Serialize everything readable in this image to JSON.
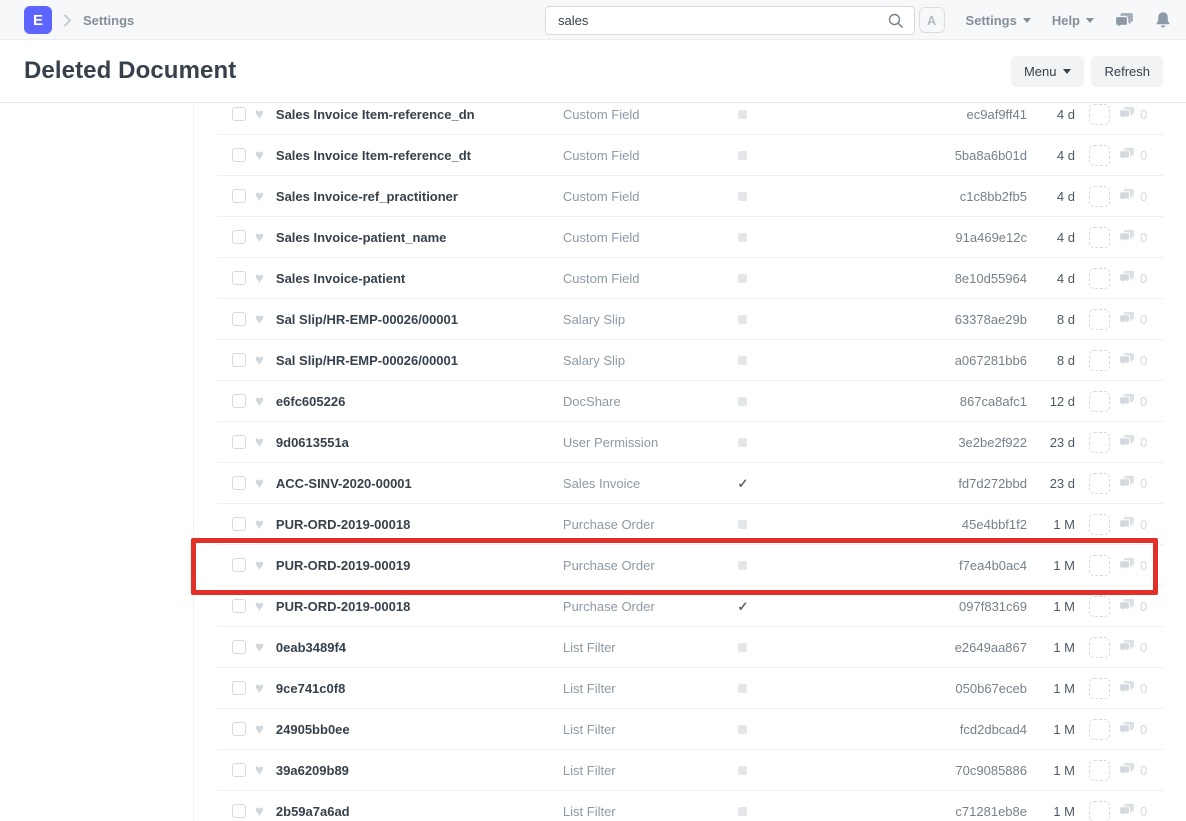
{
  "navbar": {
    "logo_letter": "E",
    "breadcrumb": "Settings",
    "search": {
      "value": "sales"
    },
    "user_initial": "A",
    "settings_label": "Settings",
    "help_label": "Help"
  },
  "header": {
    "title": "Deleted Document",
    "menu_label": "Menu",
    "refresh_label": "Refresh"
  },
  "colors": {
    "brand": "#5e64ff",
    "annotation_red": "#e23028",
    "indicator_gray": "#e4e7ea"
  },
  "rows": [
    {
      "subject": "Sales Invoice Item-reference_dn",
      "doctype": "Custom Field",
      "status": "square",
      "hash": "ec9af9ff41",
      "age": "4 d",
      "comments": "0",
      "highlighted": false
    },
    {
      "subject": "Sales Invoice Item-reference_dt",
      "doctype": "Custom Field",
      "status": "square",
      "hash": "5ba8a6b01d",
      "age": "4 d",
      "comments": "0",
      "highlighted": false
    },
    {
      "subject": "Sales Invoice-ref_practitioner",
      "doctype": "Custom Field",
      "status": "square",
      "hash": "c1c8bb2fb5",
      "age": "4 d",
      "comments": "0",
      "highlighted": false
    },
    {
      "subject": "Sales Invoice-patient_name",
      "doctype": "Custom Field",
      "status": "square",
      "hash": "91a469e12c",
      "age": "4 d",
      "comments": "0",
      "highlighted": false
    },
    {
      "subject": "Sales Invoice-patient",
      "doctype": "Custom Field",
      "status": "square",
      "hash": "8e10d55964",
      "age": "4 d",
      "comments": "0",
      "highlighted": false
    },
    {
      "subject": "Sal Slip/HR-EMP-00026/00001",
      "doctype": "Salary Slip",
      "status": "square",
      "hash": "63378ae29b",
      "age": "8 d",
      "comments": "0",
      "highlighted": false
    },
    {
      "subject": "Sal Slip/HR-EMP-00026/00001",
      "doctype": "Salary Slip",
      "status": "square",
      "hash": "a067281bb6",
      "age": "8 d",
      "comments": "0",
      "highlighted": false
    },
    {
      "subject": "e6fc605226",
      "doctype": "DocShare",
      "status": "square",
      "hash": "867ca8afc1",
      "age": "12 d",
      "comments": "0",
      "highlighted": false
    },
    {
      "subject": "9d0613551a",
      "doctype": "User Permission",
      "status": "square",
      "hash": "3e2be2f922",
      "age": "23 d",
      "comments": "0",
      "highlighted": false
    },
    {
      "subject": "ACC-SINV-2020-00001",
      "doctype": "Sales Invoice",
      "status": "check",
      "hash": "fd7d272bbd",
      "age": "23 d",
      "comments": "0",
      "highlighted": false
    },
    {
      "subject": "PUR-ORD-2019-00018",
      "doctype": "Purchase Order",
      "status": "square",
      "hash": "45e4bbf1f2",
      "age": "1 M",
      "comments": "0",
      "highlighted": false
    },
    {
      "subject": "PUR-ORD-2019-00019",
      "doctype": "Purchase Order",
      "status": "square",
      "hash": "f7ea4b0ac4",
      "age": "1 M",
      "comments": "0",
      "highlighted": true
    },
    {
      "subject": "PUR-ORD-2019-00018",
      "doctype": "Purchase Order",
      "status": "check",
      "hash": "097f831c69",
      "age": "1 M",
      "comments": "0",
      "highlighted": false
    },
    {
      "subject": "0eab3489f4",
      "doctype": "List Filter",
      "status": "square",
      "hash": "e2649aa867",
      "age": "1 M",
      "comments": "0",
      "highlighted": false
    },
    {
      "subject": "9ce741c0f8",
      "doctype": "List Filter",
      "status": "square",
      "hash": "050b67eceb",
      "age": "1 M",
      "comments": "0",
      "highlighted": false
    },
    {
      "subject": "24905bb0ee",
      "doctype": "List Filter",
      "status": "square",
      "hash": "fcd2dbcad4",
      "age": "1 M",
      "comments": "0",
      "highlighted": false
    },
    {
      "subject": "39a6209b89",
      "doctype": "List Filter",
      "status": "square",
      "hash": "70c9085886",
      "age": "1 M",
      "comments": "0",
      "highlighted": false
    },
    {
      "subject": "2b59a7a6ad",
      "doctype": "List Filter",
      "status": "square",
      "hash": "c71281eb8e",
      "age": "1 M",
      "comments": "0",
      "highlighted": false
    }
  ]
}
